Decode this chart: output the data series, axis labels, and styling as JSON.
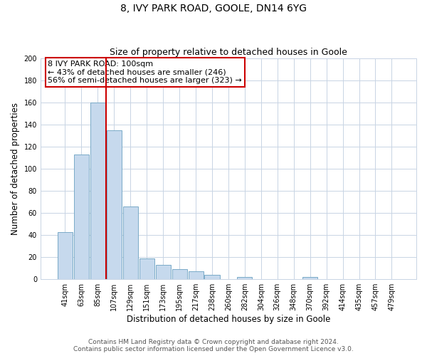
{
  "title": "8, IVY PARK ROAD, GOOLE, DN14 6YG",
  "subtitle": "Size of property relative to detached houses in Goole",
  "xlabel": "Distribution of detached houses by size in Goole",
  "ylabel": "Number of detached properties",
  "bar_labels": [
    "41sqm",
    "63sqm",
    "85sqm",
    "107sqm",
    "129sqm",
    "151sqm",
    "173sqm",
    "195sqm",
    "217sqm",
    "238sqm",
    "260sqm",
    "282sqm",
    "304sqm",
    "326sqm",
    "348sqm",
    "370sqm",
    "392sqm",
    "414sqm",
    "435sqm",
    "457sqm",
    "479sqm"
  ],
  "bar_values": [
    43,
    113,
    160,
    135,
    66,
    19,
    13,
    9,
    7,
    4,
    0,
    2,
    0,
    0,
    0,
    2,
    0,
    0,
    0,
    0,
    0
  ],
  "bar_color": "#c6d9ed",
  "bar_edge_color": "#7aaac8",
  "vline_x_index": 3,
  "vline_color": "#cc0000",
  "annotation_title": "8 IVY PARK ROAD: 100sqm",
  "annotation_line1": "← 43% of detached houses are smaller (246)",
  "annotation_line2": "56% of semi-detached houses are larger (323) →",
  "annotation_box_color": "#ffffff",
  "annotation_box_edge_color": "#cc0000",
  "ylim": [
    0,
    200
  ],
  "yticks": [
    0,
    20,
    40,
    60,
    80,
    100,
    120,
    140,
    160,
    180,
    200
  ],
  "footer_line1": "Contains HM Land Registry data © Crown copyright and database right 2024.",
  "footer_line2": "Contains public sector information licensed under the Open Government Licence v3.0.",
  "background_color": "#ffffff",
  "grid_color": "#c8d4e4",
  "title_fontsize": 10,
  "subtitle_fontsize": 9,
  "axis_label_fontsize": 8.5,
  "tick_fontsize": 7,
  "footer_fontsize": 6.5
}
